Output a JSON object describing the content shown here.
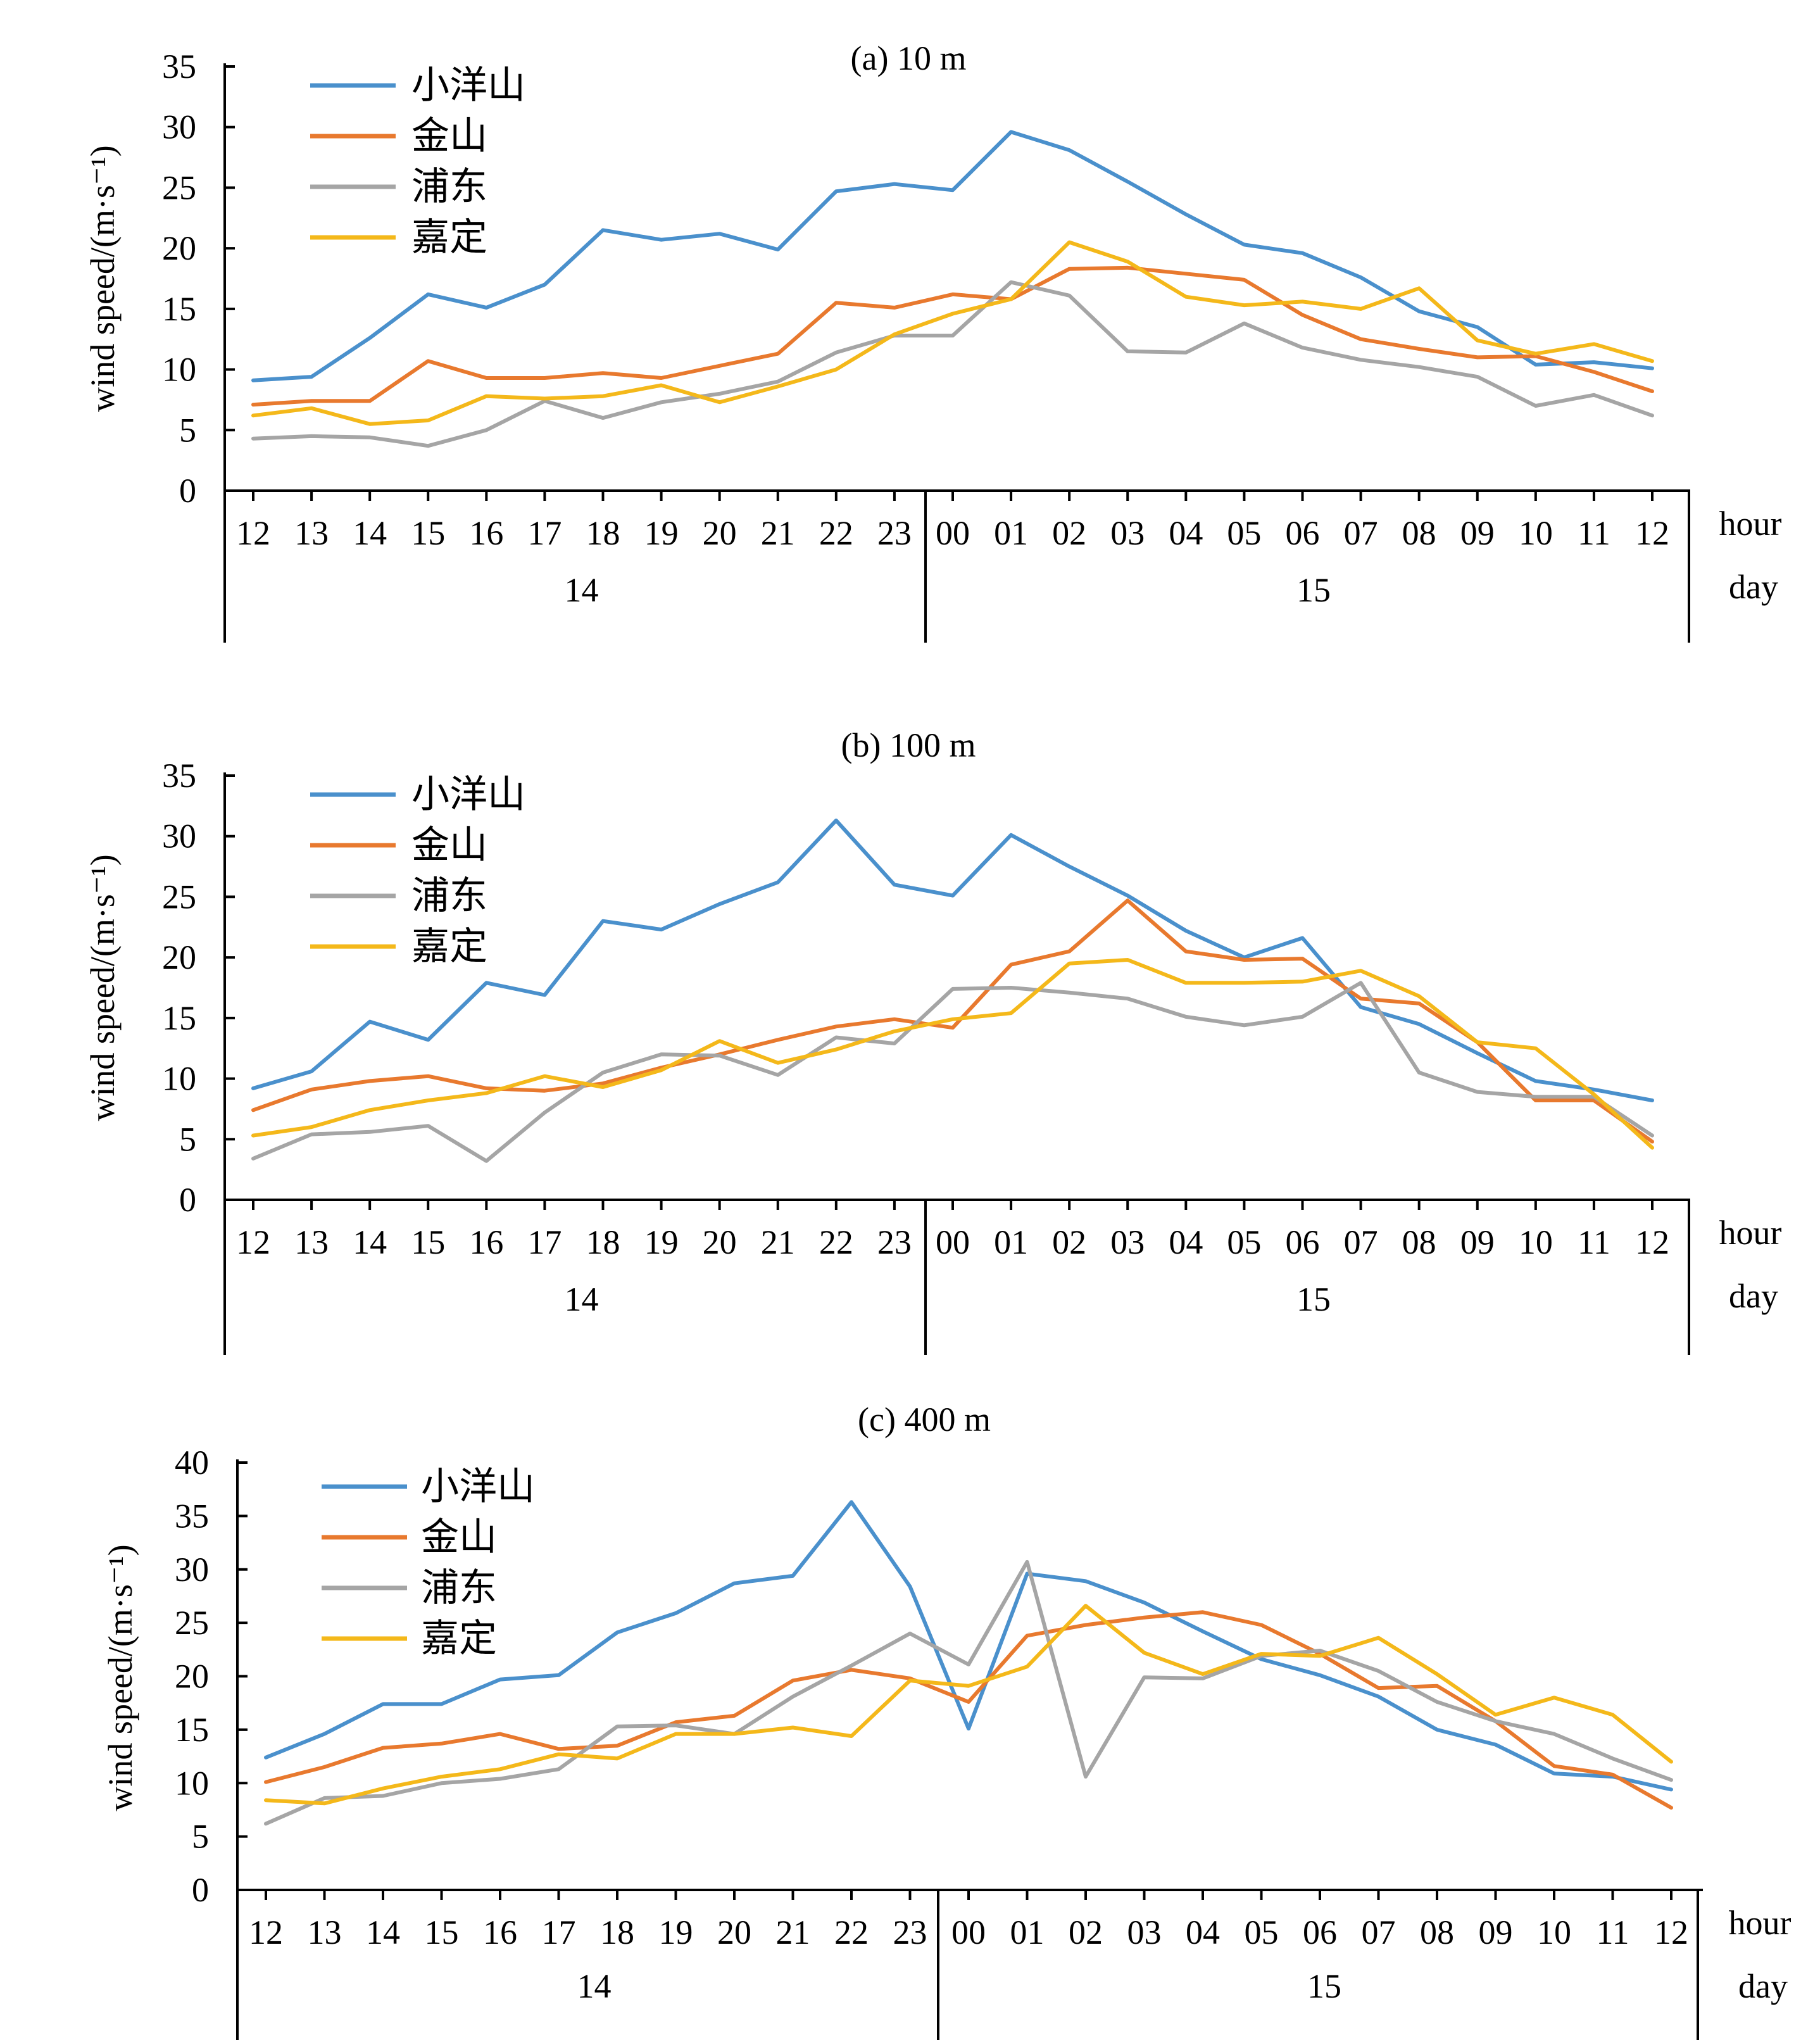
{
  "colors": {
    "小洋山": "#4a90cc",
    "金山": "#e8792e",
    "浦东": "#a5a5a5",
    "嘉定": "#f4b81a",
    "axis": "#000000"
  },
  "chart_data": [
    {
      "type": "line",
      "title": "(a) 10 m",
      "ylabel": "wind speed/(m·s⁻¹)",
      "ylim": [
        0,
        35
      ],
      "yticks": [
        "0",
        "5",
        "10",
        "15",
        "20",
        "25",
        "30",
        "35"
      ],
      "x_hours": [
        "12",
        "13",
        "14",
        "15",
        "16",
        "17",
        "18",
        "19",
        "20",
        "21",
        "22",
        "23",
        "00",
        "01",
        "02",
        "03",
        "04",
        "05",
        "06",
        "07",
        "08",
        "09",
        "10",
        "11",
        "12"
      ],
      "hour_label": "hour",
      "day_label": "day",
      "days": [
        "14",
        "15"
      ],
      "grid": false,
      "legend": "top-left",
      "series": [
        {
          "name": "小洋山",
          "values": [
            9.1,
            9.4,
            12.6,
            16.2,
            15.1,
            17.0,
            21.5,
            20.7,
            21.2,
            19.9,
            24.7,
            25.3,
            24.8,
            29.6,
            28.1,
            25.5,
            22.8,
            20.3,
            19.6,
            17.6,
            14.8,
            13.5,
            10.4,
            10.6,
            10.1
          ]
        },
        {
          "name": "金山",
          "values": [
            7.1,
            7.4,
            7.4,
            10.7,
            9.3,
            9.3,
            9.7,
            9.3,
            10.3,
            11.3,
            15.5,
            15.1,
            16.2,
            15.8,
            18.3,
            18.4,
            17.9,
            17.4,
            14.5,
            12.5,
            11.7,
            11.0,
            11.1,
            9.8,
            8.2
          ]
        },
        {
          "name": "浦东",
          "values": [
            4.3,
            4.5,
            4.4,
            3.7,
            5.0,
            7.4,
            6.0,
            7.3,
            8.0,
            9.0,
            11.4,
            12.8,
            12.8,
            17.2,
            16.1,
            11.5,
            11.4,
            13.8,
            11.8,
            10.8,
            10.2,
            9.4,
            7.0,
            7.9,
            6.2
          ]
        },
        {
          "name": "嘉定",
          "values": [
            6.2,
            6.8,
            5.5,
            5.8,
            7.8,
            7.6,
            7.8,
            8.7,
            7.3,
            8.6,
            10.0,
            12.9,
            14.6,
            15.8,
            20.5,
            18.9,
            16.0,
            15.3,
            15.6,
            15.0,
            16.7,
            12.4,
            11.3,
            12.1,
            10.7
          ]
        }
      ]
    },
    {
      "type": "line",
      "title": "(b) 100 m",
      "ylabel": "wind speed/(m·s⁻¹)",
      "ylim": [
        0,
        35
      ],
      "yticks": [
        "0",
        "5",
        "10",
        "15",
        "20",
        "25",
        "30",
        "35"
      ],
      "x_hours": [
        "12",
        "13",
        "14",
        "15",
        "16",
        "17",
        "18",
        "19",
        "20",
        "21",
        "22",
        "23",
        "00",
        "01",
        "02",
        "03",
        "04",
        "05",
        "06",
        "07",
        "08",
        "09",
        "10",
        "11",
        "12"
      ],
      "hour_label": "hour",
      "day_label": "day",
      "days": [
        "14",
        "15"
      ],
      "grid": false,
      "legend": "top-left",
      "series": [
        {
          "name": "小洋山",
          "values": [
            9.2,
            10.6,
            14.7,
            13.2,
            17.9,
            16.9,
            23.0,
            22.3,
            24.4,
            26.2,
            31.3,
            26.0,
            25.1,
            30.1,
            27.5,
            25.1,
            22.2,
            20.0,
            21.6,
            15.9,
            14.5,
            12.1,
            9.8,
            9.1,
            8.2
          ]
        },
        {
          "name": "金山",
          "values": [
            7.4,
            9.1,
            9.8,
            10.2,
            9.2,
            9.0,
            9.6,
            10.9,
            12.0,
            13.2,
            14.3,
            14.9,
            14.2,
            19.4,
            20.5,
            24.7,
            20.5,
            19.8,
            19.9,
            16.6,
            16.2,
            13.0,
            8.2,
            8.2,
            4.8
          ]
        },
        {
          "name": "浦东",
          "values": [
            3.4,
            5.4,
            5.6,
            6.1,
            3.2,
            7.2,
            10.5,
            12.0,
            11.9,
            10.3,
            13.4,
            12.9,
            17.4,
            17.5,
            17.1,
            16.6,
            15.1,
            14.4,
            15.1,
            17.9,
            10.5,
            8.9,
            8.5,
            8.5,
            5.3
          ]
        },
        {
          "name": "嘉定",
          "values": [
            5.3,
            6.0,
            7.4,
            8.2,
            8.8,
            10.2,
            9.3,
            10.7,
            13.1,
            11.3,
            12.4,
            13.9,
            14.9,
            15.4,
            19.5,
            19.8,
            17.9,
            17.9,
            18.0,
            18.9,
            16.8,
            13.0,
            12.5,
            8.7,
            4.3
          ]
        }
      ]
    },
    {
      "type": "line",
      "title": "(c) 400 m",
      "ylabel": "wind speed/(m·s⁻¹)",
      "ylim": [
        0,
        40
      ],
      "yticks": [
        "0",
        "5",
        "10",
        "15",
        "20",
        "25",
        "30",
        "35",
        "40"
      ],
      "x_hours": [
        "12",
        "13",
        "14",
        "15",
        "16",
        "17",
        "18",
        "19",
        "20",
        "21",
        "22",
        "23",
        "00",
        "01",
        "02",
        "03",
        "04",
        "05",
        "06",
        "07",
        "08",
        "09",
        "10",
        "11",
        "12"
      ],
      "hour_label": "hour",
      "day_label": "day",
      "days": [
        "14",
        "15"
      ],
      "grid": false,
      "legend": "top-left",
      "series": [
        {
          "name": "小洋山",
          "values": [
            12.4,
            14.6,
            17.4,
            17.4,
            19.7,
            20.1,
            24.1,
            25.9,
            28.7,
            29.4,
            36.3,
            28.4,
            15.1,
            29.6,
            28.9,
            26.9,
            24.2,
            21.6,
            20.1,
            18.1,
            15.0,
            13.6,
            10.9,
            10.6,
            9.4
          ]
        },
        {
          "name": "金山",
          "values": [
            10.1,
            11.5,
            13.3,
            13.7,
            14.6,
            13.2,
            13.5,
            15.7,
            16.3,
            19.6,
            20.6,
            19.8,
            17.6,
            23.8,
            24.8,
            25.5,
            26.0,
            24.8,
            22.1,
            18.9,
            19.1,
            15.8,
            11.6,
            10.8,
            7.7
          ]
        },
        {
          "name": "浦东",
          "values": [
            6.2,
            8.6,
            8.8,
            10.0,
            10.4,
            11.3,
            15.3,
            15.4,
            14.6,
            18.1,
            21.0,
            24.0,
            21.1,
            30.7,
            10.6,
            19.9,
            19.8,
            21.9,
            22.4,
            20.5,
            17.6,
            15.8,
            14.6,
            12.3,
            10.3
          ]
        },
        {
          "name": "嘉定",
          "values": [
            8.4,
            8.1,
            9.5,
            10.6,
            11.3,
            12.7,
            12.3,
            14.6,
            14.6,
            15.2,
            14.4,
            19.6,
            19.1,
            20.9,
            26.6,
            22.2,
            20.2,
            22.1,
            21.9,
            23.6,
            20.2,
            16.4,
            18.0,
            16.4,
            12.0
          ]
        }
      ]
    }
  ]
}
